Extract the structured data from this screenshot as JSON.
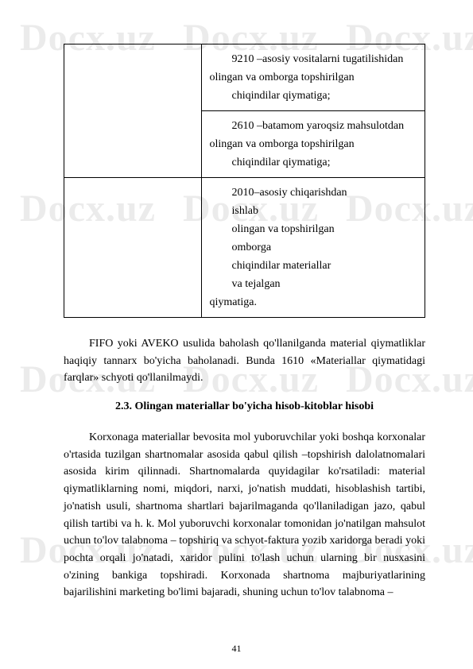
{
  "watermark": "Docx.uz",
  "table": {
    "rows": [
      {
        "left": "",
        "right": [
          "9210 –asosiy vositalarni tugatilishidan",
          "olingan va omborga topshirilgan",
          "chiqindilar qiymatiga;"
        ]
      },
      {
        "left": "",
        "right": [
          "2610 –batamom yaroqsiz mahsulotdan",
          "olingan va omborga topshirilgan",
          "chiqindilar qiymatiga;"
        ]
      },
      {
        "left": "",
        "right": [
          "2010–asosiy          chiqarishdan",
          "ishlab",
          "olingan     va              topshirilgan",
          "omborga",
          "chiqindilar                   materiallar",
          "va     tejalgan",
          "qiymatiga."
        ]
      }
    ]
  },
  "paragraph1": "FIFO yoki AVEKO usulida baholash qo'llanilganda material qiymatliklar haqiqiy tannarx bo'yicha baholanadi. Bunda 1610 «Materiallar qiymatidagi farqlar» schyoti qo'llanilmaydi.",
  "section_title": "2.3. Olingan materiallar bo'yicha hisob-kitoblar hisobi",
  "paragraph2": "Korxonaga materiallar bevosita mol yuboruvchilar yoki boshqa korxonalar o'rtasida tuzilgan shartnomalar asosida qabul qilish –topshirish dalolatnomalari asosida kirim qilinnadi. Shartnomalarda quyidagilar ko'rsatiladi: material qiymatliklarning nomi, miqdori, narxi, jo'natish muddati, hisoblashish tartibi, jo'natish usuli, shartnoma shartlari bajarilmaganda qo'llaniladigan jazo, qabul qilish tartibi va h. k. Mol yuboruvchi korxonalar tomonidan jo'natilgan mahsulot uchun to'lov talabnoma – topshiriq va schyot-faktura yozib xaridorga beradi yoki pochta orqali jo'natadi, xaridor pulini to'lash uchun ularning bir nusxasini o'zining bankiga topshiradi. Korxonada shartnoma majburiyatlarining bajarilishini marketing bo'limi bajaradi, shuning uchun to'lov talabnoma –",
  "page_number": "41"
}
